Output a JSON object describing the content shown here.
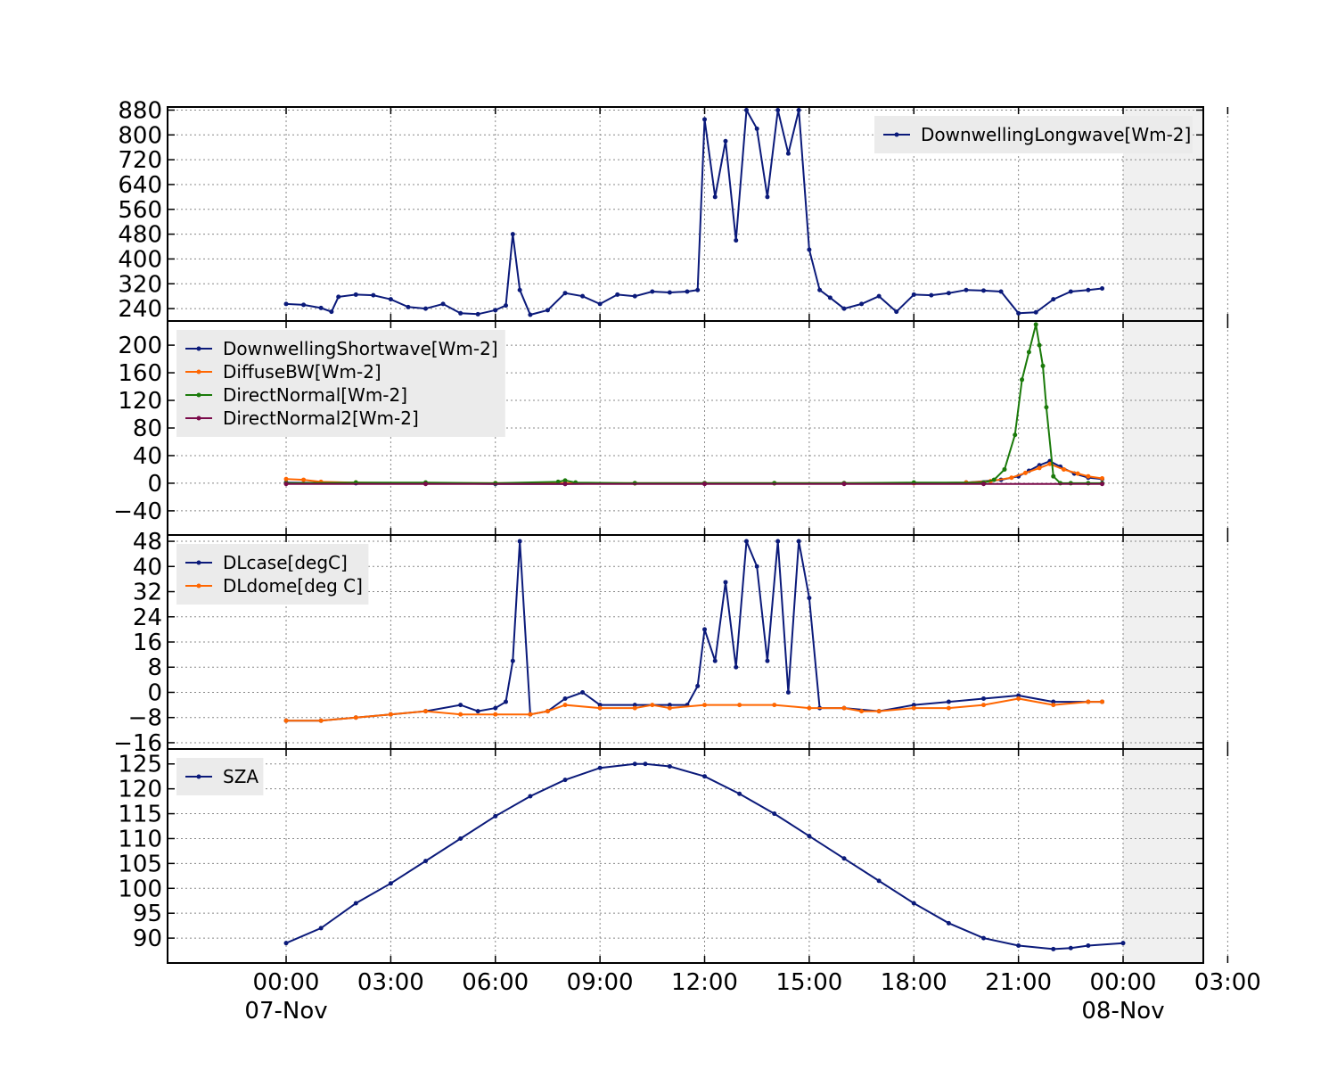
{
  "chart_data": [
    {
      "type": "line",
      "title": "",
      "xlabel": "",
      "ylabel": "",
      "ylim": [
        200,
        890
      ],
      "yticks": [
        240,
        320,
        400,
        480,
        560,
        640,
        720,
        800,
        880
      ],
      "legend": "top-right",
      "grid": true,
      "series": [
        {
          "name": "DownwellingLongwave[Wm-2]",
          "color": "#0b1a7a",
          "x": [
            0,
            0.5,
            1.0,
            1.3,
            1.5,
            2.0,
            2.5,
            3.0,
            3.5,
            4.0,
            4.5,
            5.0,
            5.5,
            6.0,
            6.3,
            6.5,
            6.7,
            7.0,
            7.5,
            8.0,
            8.5,
            9.0,
            9.5,
            10.0,
            10.5,
            11.0,
            11.5,
            11.8,
            12.0,
            12.3,
            12.6,
            12.9,
            13.2,
            13.5,
            13.8,
            14.1,
            14.4,
            14.7,
            15.0,
            15.3,
            15.6,
            16.0,
            16.5,
            17.0,
            17.5,
            18.0,
            18.5,
            19.0,
            19.5,
            20.0,
            20.5,
            21.0,
            21.5,
            22.0,
            22.5,
            23.0,
            23.4
          ],
          "y": [
            255,
            252,
            242,
            230,
            278,
            285,
            283,
            270,
            245,
            240,
            255,
            225,
            222,
            235,
            250,
            480,
            300,
            220,
            235,
            290,
            280,
            255,
            285,
            280,
            295,
            292,
            295,
            300,
            850,
            600,
            780,
            460,
            880,
            820,
            600,
            880,
            740,
            880,
            430,
            300,
            275,
            240,
            255,
            280,
            230,
            285,
            283,
            290,
            300,
            298,
            295,
            225,
            228,
            270,
            295,
            300,
            305
          ]
        }
      ]
    },
    {
      "type": "line",
      "title": "",
      "xlabel": "",
      "ylabel": "",
      "ylim": [
        -75,
        235
      ],
      "yticks": [
        -40,
        0,
        40,
        80,
        120,
        160,
        200
      ],
      "legend": "top-left",
      "grid": true,
      "series": [
        {
          "name": "DownwellingShortwave[Wm-2]",
          "color": "#0b1a7a",
          "x": [
            0,
            2,
            4,
            6,
            8,
            10,
            12,
            14,
            16,
            18,
            19.5,
            20.5,
            21.0,
            21.3,
            21.6,
            21.9,
            22.2,
            22.6,
            23.0,
            23.4
          ],
          "y": [
            1,
            0,
            0,
            -1,
            -1,
            0,
            0,
            0,
            0,
            0,
            1,
            5,
            10,
            18,
            26,
            32,
            24,
            14,
            8,
            6
          ]
        },
        {
          "name": "DiffuseBW[Wm-2]",
          "color": "#ff6600",
          "x": [
            0,
            0.5,
            1.0,
            2,
            4,
            6,
            8,
            10,
            12,
            14,
            16,
            18,
            19.5,
            20.2,
            20.8,
            21.2,
            21.6,
            21.9,
            22.3,
            22.7,
            23.0,
            23.4
          ],
          "y": [
            6,
            5,
            2,
            1,
            0,
            0,
            0,
            0,
            0,
            0,
            0,
            0,
            1,
            3,
            8,
            15,
            22,
            28,
            20,
            14,
            10,
            7
          ]
        },
        {
          "name": "DirectNormal[Wm-2]",
          "color": "#1a7a0a",
          "x": [
            0,
            2,
            4,
            6,
            7.8,
            8.0,
            8.3,
            10,
            12,
            14,
            16,
            18,
            20.0,
            20.3,
            20.6,
            20.9,
            21.1,
            21.3,
            21.5,
            21.6,
            21.7,
            21.8,
            22.0,
            22.2,
            22.5,
            23.0,
            23.4
          ],
          "y": [
            0,
            1,
            1,
            0,
            2,
            4,
            1,
            0,
            0,
            0,
            0,
            1,
            1,
            5,
            20,
            70,
            150,
            190,
            230,
            200,
            170,
            110,
            10,
            0,
            0,
            0,
            0
          ]
        },
        {
          "name": "DirectNormal2[Wm-2]",
          "color": "#7a0a4a",
          "x": [
            0,
            4,
            8,
            12,
            16,
            20,
            23.4
          ],
          "y": [
            -1,
            -1,
            -1,
            -1,
            -1,
            -1,
            -1
          ]
        }
      ]
    },
    {
      "type": "line",
      "title": "",
      "xlabel": "",
      "ylabel": "",
      "ylim": [
        -18,
        50
      ],
      "yticks": [
        -16,
        -8,
        0,
        8,
        16,
        24,
        32,
        40,
        48
      ],
      "legend": "top-left",
      "grid": true,
      "series": [
        {
          "name": "DLcase[degC]",
          "color": "#0b1a7a",
          "x": [
            0,
            1,
            2,
            3,
            4,
            5,
            5.5,
            6.0,
            6.3,
            6.5,
            6.7,
            7.0,
            7.5,
            8.0,
            8.5,
            9.0,
            10.0,
            11.0,
            11.5,
            11.8,
            12.0,
            12.3,
            12.6,
            12.9,
            13.2,
            13.5,
            13.8,
            14.1,
            14.4,
            14.7,
            15.0,
            15.3,
            16.0,
            17.0,
            18.0,
            19.0,
            20.0,
            21.0,
            22.0,
            23.0,
            23.4
          ],
          "y": [
            -9,
            -9,
            -8,
            -7,
            -6,
            -4,
            -6,
            -5,
            -3,
            10,
            48,
            -7,
            -6,
            -2,
            0,
            -4,
            -4,
            -4,
            -4,
            2,
            20,
            10,
            35,
            8,
            48,
            40,
            10,
            48,
            0,
            48,
            30,
            -5,
            -5,
            -6,
            -4,
            -3,
            -2,
            -1,
            -3,
            -3,
            -3
          ]
        },
        {
          "name": "DLdome[deg C]",
          "color": "#ff6600",
          "x": [
            0,
            1,
            2,
            3,
            4,
            5,
            6,
            7,
            7.5,
            8.0,
            9.0,
            10.0,
            10.5,
            11.0,
            12.0,
            13.0,
            14.0,
            15.0,
            16.0,
            16.5,
            17.0,
            18.0,
            19.0,
            20.0,
            21.0,
            22.0,
            23.0,
            23.4
          ],
          "y": [
            -9,
            -9,
            -8,
            -7,
            -6,
            -7,
            -7,
            -7,
            -6,
            -4,
            -5,
            -5,
            -4,
            -5,
            -4,
            -4,
            -4,
            -5,
            -5,
            -6,
            -6,
            -5,
            -5,
            -4,
            -2,
            -4,
            -3,
            -3
          ]
        }
      ]
    },
    {
      "type": "line",
      "title": "",
      "xlabel": "",
      "ylabel": "",
      "ylim": [
        85,
        128
      ],
      "yticks": [
        90,
        95,
        100,
        105,
        110,
        115,
        120,
        125
      ],
      "legend": "top-left",
      "grid": true,
      "series": [
        {
          "name": "SZA",
          "color": "#0b1a7a",
          "x": [
            0,
            1,
            2,
            3,
            4,
            5,
            6,
            7,
            8,
            9,
            10,
            10.3,
            11,
            12,
            13,
            14,
            15,
            16,
            17,
            18,
            19,
            20,
            21,
            22,
            22.5,
            23,
            24
          ],
          "y": [
            89,
            92,
            97,
            101,
            105.5,
            110,
            114.5,
            118.5,
            121.8,
            124.2,
            125,
            125,
            124.5,
            122.5,
            119,
            115,
            110.5,
            106,
            101.5,
            97,
            93,
            90,
            88.5,
            87.8,
            88,
            88.5,
            89
          ]
        }
      ]
    }
  ],
  "x_axis": {
    "unit": "hours from 07-Nov 00:00",
    "range": [
      -3.4,
      26.3
    ],
    "ticks": [
      {
        "x": 0,
        "label": "00:00"
      },
      {
        "x": 3,
        "label": "03:00"
      },
      {
        "x": 6,
        "label": "06:00"
      },
      {
        "x": 9,
        "label": "09:00"
      },
      {
        "x": 12,
        "label": "12:00"
      },
      {
        "x": 15,
        "label": "15:00"
      },
      {
        "x": 18,
        "label": "18:00"
      },
      {
        "x": 21,
        "label": "21:00"
      },
      {
        "x": 24,
        "label": "00:00"
      },
      {
        "x": 27,
        "label": "03:00"
      }
    ],
    "date_labels": [
      {
        "x": 0,
        "label": "07-Nov"
      },
      {
        "x": 24,
        "label": "08-Nov"
      }
    ],
    "shaded_from": 24
  },
  "colors": {
    "shade": "#f0f0f0",
    "legend_bg": "#ebebeb"
  }
}
